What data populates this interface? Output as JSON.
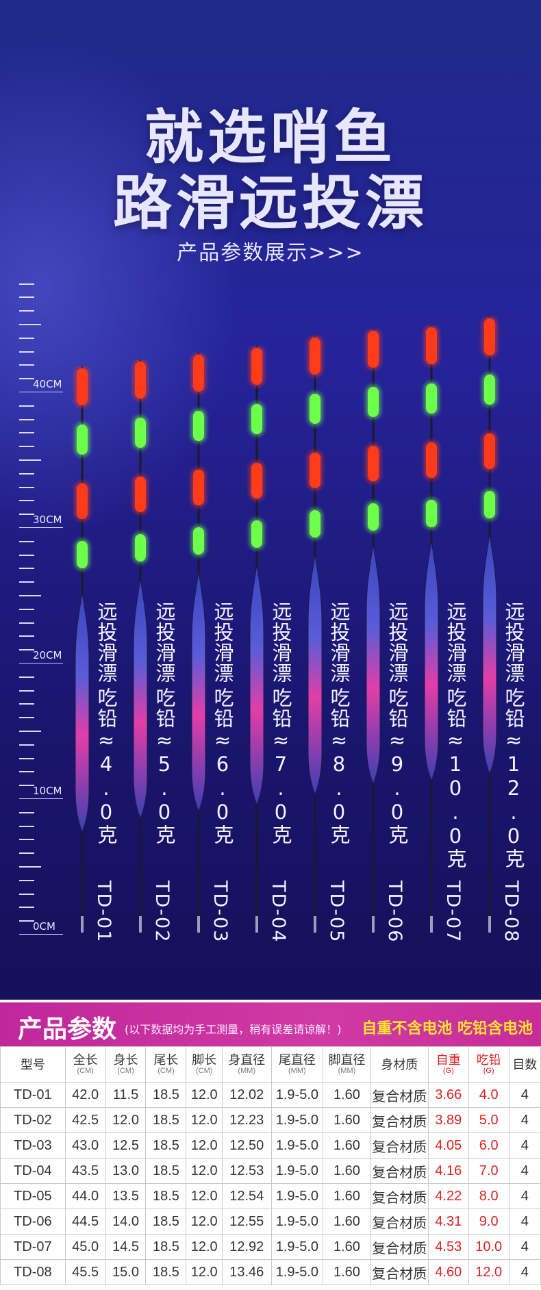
{
  "hero": {
    "title_line1": "就选哨鱼",
    "title_line2": "路滑远投漂",
    "subtitle": "产品参数展示>>>",
    "ruler_labels": [
      "40CM",
      "30CM",
      "20CM",
      "10CM",
      "0CM"
    ]
  },
  "floats": [
    {
      "code": "TD-01",
      "name": "远投滑漂",
      "lead": "吃铅≈4.0克"
    },
    {
      "code": "TD-02",
      "name": "远投滑漂",
      "lead": "吃铅≈5.0克"
    },
    {
      "code": "TD-03",
      "name": "远投滑漂",
      "lead": "吃铅≈6.0克"
    },
    {
      "code": "TD-04",
      "name": "远投滑漂",
      "lead": "吃铅≈7.0克"
    },
    {
      "code": "TD-05",
      "name": "远投滑漂",
      "lead": "吃铅≈8.0克"
    },
    {
      "code": "TD-06",
      "name": "远投滑漂",
      "lead": "吃铅≈9.0克"
    },
    {
      "code": "TD-07",
      "name": "远投滑漂",
      "lead": "吃铅≈10.0克"
    },
    {
      "code": "TD-08",
      "name": "远投滑漂",
      "lead": "吃铅≈12.0克"
    }
  ],
  "params": {
    "title": "产品参数",
    "note": "(以下数据均为手工测量，稍有误差请谅解！)",
    "right_note": "自重不含电池 吃铅含电池",
    "headers": [
      {
        "label": "型号",
        "unit": ""
      },
      {
        "label": "全长",
        "unit": "(CM)"
      },
      {
        "label": "身长",
        "unit": "(CM)"
      },
      {
        "label": "尾长",
        "unit": "(CM)"
      },
      {
        "label": "脚长",
        "unit": "(CM)"
      },
      {
        "label": "身直径",
        "unit": "(MM)"
      },
      {
        "label": "尾直径",
        "unit": "(MM)"
      },
      {
        "label": "脚直径",
        "unit": "(MM)"
      },
      {
        "label": "身材质",
        "unit": ""
      },
      {
        "label": "自重",
        "unit": "(G)"
      },
      {
        "label": "吃铅",
        "unit": "(G)"
      },
      {
        "label": "目数",
        "unit": ""
      }
    ],
    "rows": [
      [
        "TD-01",
        "42.0",
        "11.5",
        "18.5",
        "12.0",
        "12.02",
        "1.9-5.0",
        "1.60",
        "复合材质",
        "3.66",
        "4.0",
        "4"
      ],
      [
        "TD-02",
        "42.5",
        "12.0",
        "18.5",
        "12.0",
        "12.23",
        "1.9-5.0",
        "1.60",
        "复合材质",
        "3.89",
        "5.0",
        "4"
      ],
      [
        "TD-03",
        "43.0",
        "12.5",
        "18.5",
        "12.0",
        "12.50",
        "1.9-5.0",
        "1.60",
        "复合材质",
        "4.05",
        "6.0",
        "4"
      ],
      [
        "TD-04",
        "43.5",
        "13.0",
        "18.5",
        "12.0",
        "12.53",
        "1.9-5.0",
        "1.60",
        "复合材质",
        "4.16",
        "7.0",
        "4"
      ],
      [
        "TD-05",
        "44.0",
        "13.5",
        "18.5",
        "12.0",
        "12.54",
        "1.9-5.0",
        "1.60",
        "复合材质",
        "4.22",
        "8.0",
        "4"
      ],
      [
        "TD-06",
        "44.5",
        "14.0",
        "18.5",
        "12.0",
        "12.55",
        "1.9-5.0",
        "1.60",
        "复合材质",
        "4.31",
        "9.0",
        "4"
      ],
      [
        "TD-07",
        "45.0",
        "14.5",
        "18.5",
        "12.0",
        "12.92",
        "1.9-5.0",
        "1.60",
        "复合材质",
        "4.53",
        "10.0",
        "4"
      ],
      [
        "TD-08",
        "45.5",
        "15.0",
        "18.5",
        "12.0",
        "13.46",
        "1.9-5.0",
        "1.60",
        "复合材质",
        "4.60",
        "12.0",
        "4"
      ]
    ]
  },
  "colors": {
    "bulb_red": "#ff3b1a",
    "bulb_green": "#6dff4a",
    "body_blue": "#4a4fc8",
    "body_pink": "#e23ea8",
    "accent_magenta": "#c92c9a",
    "note_yellow": "#ffe230",
    "value_red": "#e02020"
  }
}
